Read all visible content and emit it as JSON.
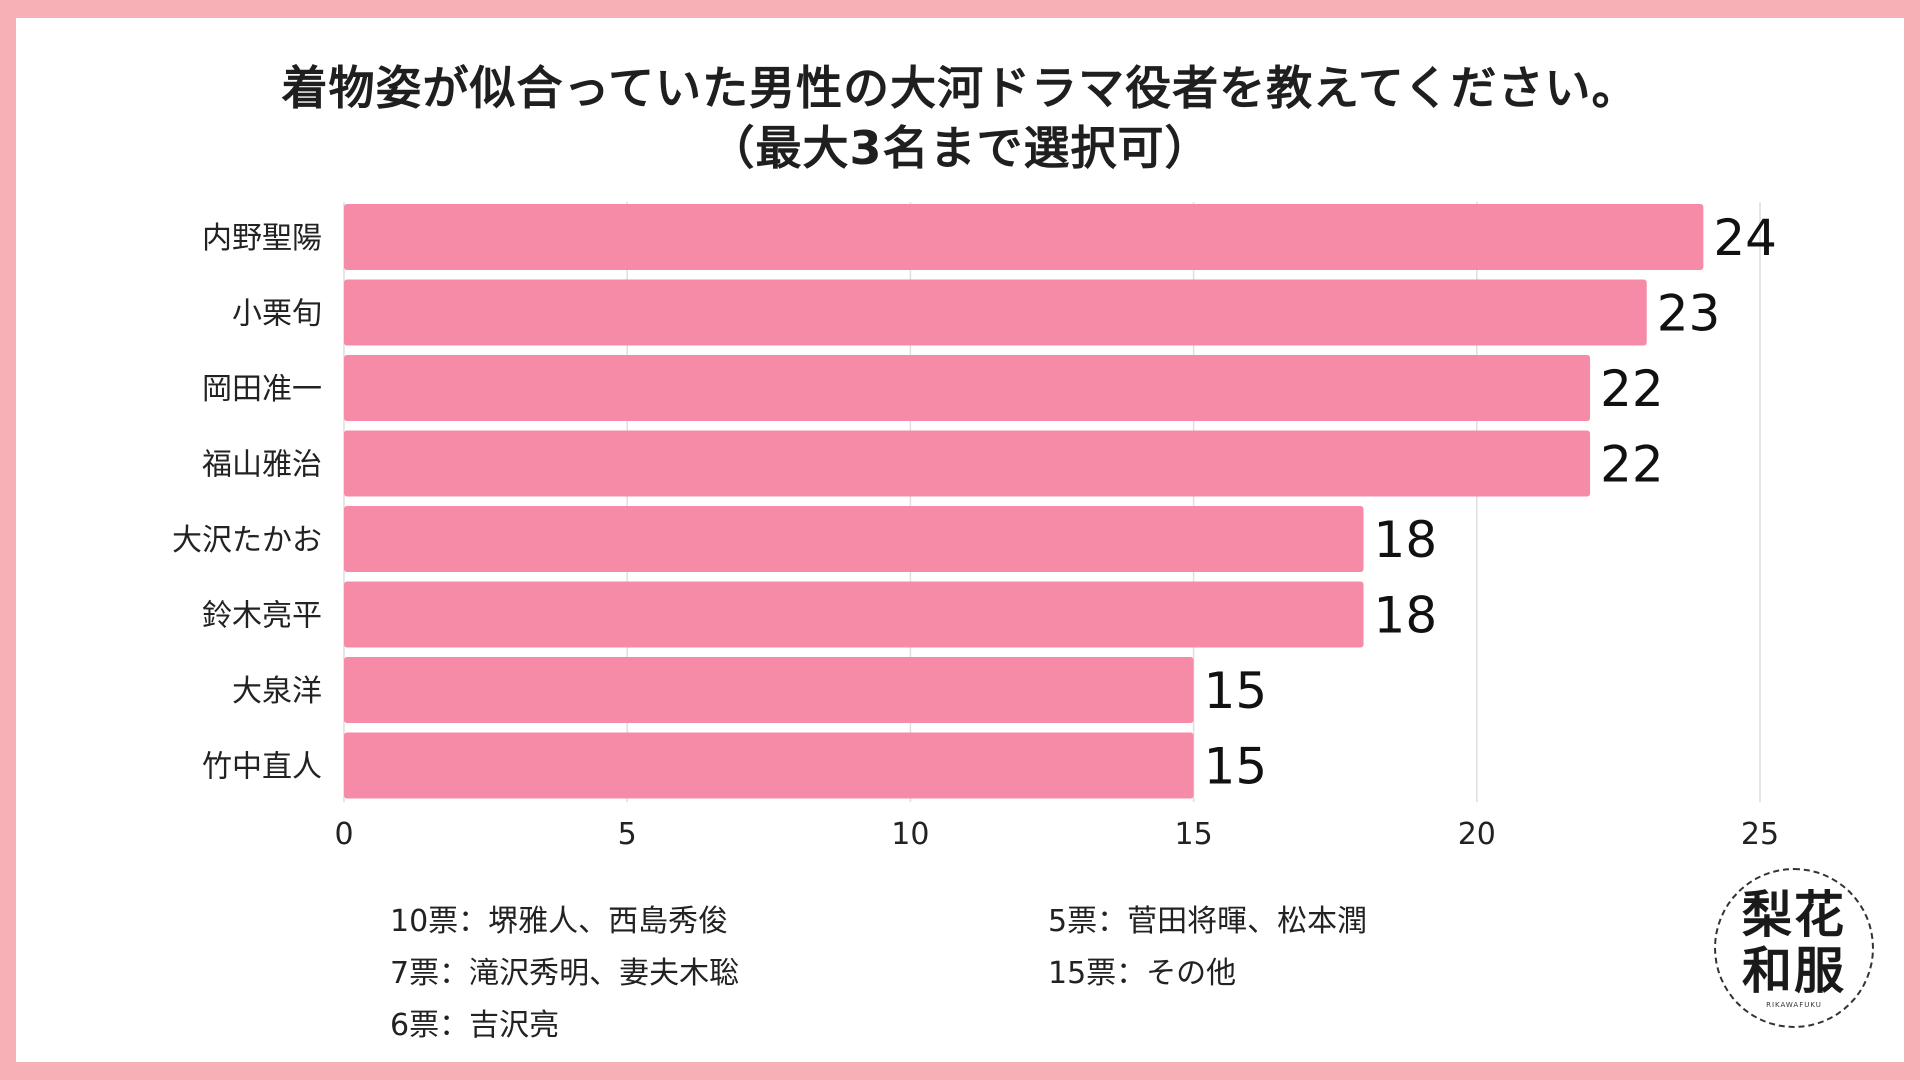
{
  "colors": {
    "bar": "#f68ba8",
    "background": "#f7b0b6",
    "grid": "#dedede"
  },
  "chart_data": {
    "type": "bar",
    "orientation": "horizontal",
    "title": "着物姿が似合っていた男性の大河ドラマ役者を教えてください。",
    "subtitle": "（最大3名まで選択可）",
    "categories": [
      "内野聖陽",
      "小栗旬",
      "岡田准一",
      "福山雅治",
      "大沢たかお",
      "鈴木亮平",
      "大泉洋",
      "竹中直人"
    ],
    "values": [
      24,
      23,
      22,
      22,
      18,
      18,
      15,
      15
    ],
    "xlim": [
      0,
      25
    ],
    "xticks": [
      "0",
      "5",
      "10",
      "15",
      "20",
      "25"
    ],
    "grid": true,
    "data_labels": true
  },
  "notes": {
    "left": [
      "10票：堺雅人、西島秀俊",
      "7票：滝沢秀明、妻夫木聡",
      "6票：吉沢亮"
    ],
    "right": [
      "5票：菅田将暉、松本潤",
      "15票：その他"
    ]
  },
  "logo": {
    "row1": "梨花",
    "row2": "和服",
    "sub": "RIKAWAFUKU",
    "icon": "brand-logo-icon"
  }
}
